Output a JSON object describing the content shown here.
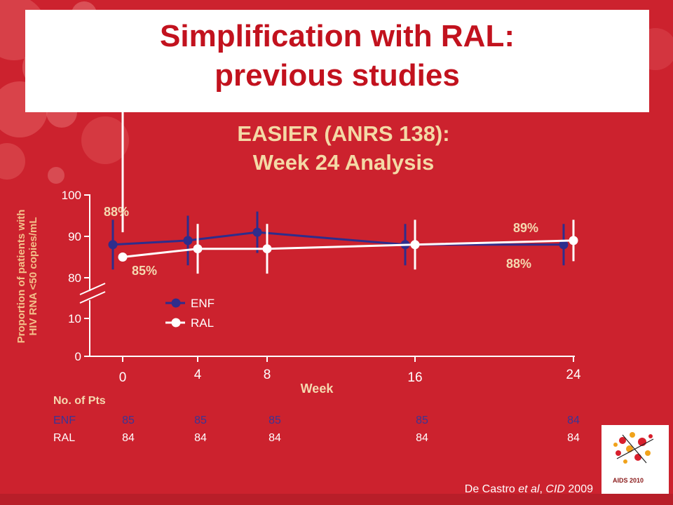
{
  "slide": {
    "title_line1": "Simplification with RAL:",
    "title_line2": "previous studies",
    "subtitle_line1": "EASIER (ANRS 138):",
    "subtitle_line2": "Week 24 Analysis",
    "citation_prefix": "De Castro ",
    "citation_italic": "et al",
    "citation_mid": ", ",
    "citation_journal": "CID",
    "citation_year": " 2009",
    "logo_text": "AIDS 2010"
  },
  "colors": {
    "background": "#cc222e",
    "title": "#c2121e",
    "subtitle": "#f4d9a6",
    "enf": "#2e2d8c",
    "ral": "#ffffff",
    "axis_label": "#f3c08a"
  },
  "chart_data": {
    "type": "line",
    "xlabel": "Week",
    "ylabel_line1": "Proportion of patients with",
    "ylabel_line2": "HIV RNA <50 copies/mL",
    "x_ticks": [
      "0",
      "4",
      "8",
      "16",
      "24"
    ],
    "y_ticks": [
      "0",
      "10",
      "80",
      "90",
      "100"
    ],
    "axis_break": true,
    "ylim": [
      0,
      100
    ],
    "series": [
      {
        "name": "ENF",
        "x": [
          0,
          4,
          8,
          16,
          24
        ],
        "values": [
          88,
          89,
          91,
          88,
          88
        ],
        "err": [
          6,
          6,
          5,
          5,
          5
        ]
      },
      {
        "name": "RAL",
        "x": [
          0,
          4,
          8,
          16,
          24
        ],
        "values": [
          85,
          87,
          87,
          88,
          89
        ],
        "err": [
          6,
          6,
          6,
          6,
          5
        ]
      }
    ],
    "annotations": [
      {
        "text": "88%",
        "series": "ENF",
        "x": 0
      },
      {
        "text": "85%",
        "series": "RAL",
        "x": 0
      },
      {
        "text": "89%",
        "series": "RAL",
        "x": 24
      },
      {
        "text": "88%",
        "series": "ENF",
        "x": 24
      }
    ]
  },
  "patients": {
    "title": "No. of Pts",
    "rows": [
      {
        "label": "ENF",
        "values": [
          "85",
          "85",
          "85",
          "85",
          "84"
        ]
      },
      {
        "label": "RAL",
        "values": [
          "84",
          "84",
          "84",
          "84",
          "84"
        ]
      }
    ]
  }
}
